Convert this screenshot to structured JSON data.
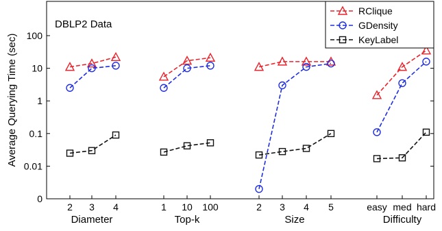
{
  "chart_data": {
    "type": "line",
    "annotation": "DBLP2 Data",
    "ylabel": "Average Querying Time (sec)",
    "yscale": "log",
    "yticks": [
      {
        "value": 0.001,
        "label": "0"
      },
      {
        "value": 0.01,
        "label": "0.01"
      },
      {
        "value": 0.1,
        "label": "0.1"
      },
      {
        "value": 1,
        "label": "1"
      },
      {
        "value": 10,
        "label": "10"
      },
      {
        "value": 100,
        "label": "100"
      }
    ],
    "ylim": [
      0.001,
      100
    ],
    "legend_position": "top-right",
    "series": [
      {
        "name": "RClique",
        "color": "#e8232b",
        "marker": "triangle",
        "dash": "dash"
      },
      {
        "name": "GDensity",
        "color": "#1f2ee0",
        "marker": "circle",
        "dash": "dash"
      },
      {
        "name": "KeyLabel",
        "color": "#111111",
        "marker": "square",
        "dash": "dash"
      }
    ],
    "groups": [
      {
        "xlabel": "Diameter",
        "categories": [
          "2",
          "3",
          "4"
        ],
        "values": [
          [
            11,
            14,
            22
          ],
          [
            2.5,
            10,
            12
          ],
          [
            0.025,
            0.03,
            0.09
          ]
        ]
      },
      {
        "xlabel": "Top-k",
        "categories": [
          "1",
          "10",
          "100"
        ],
        "values": [
          [
            5.5,
            17,
            21
          ],
          [
            2.5,
            10,
            12
          ],
          [
            0.027,
            0.042,
            0.052
          ]
        ]
      },
      {
        "xlabel": "Size",
        "categories": [
          "2",
          "3",
          "4",
          "5"
        ],
        "values": [
          [
            11,
            16,
            16,
            16
          ],
          [
            0.002,
            3,
            11,
            14
          ],
          [
            0.022,
            0.028,
            0.035,
            0.1
          ]
        ]
      },
      {
        "xlabel": "Difficulty",
        "categories": [
          "easy",
          "med",
          "hard"
        ],
        "values": [
          [
            1.5,
            11,
            35
          ],
          [
            0.11,
            3.5,
            16
          ],
          [
            0.017,
            0.018,
            0.11
          ]
        ]
      }
    ]
  }
}
